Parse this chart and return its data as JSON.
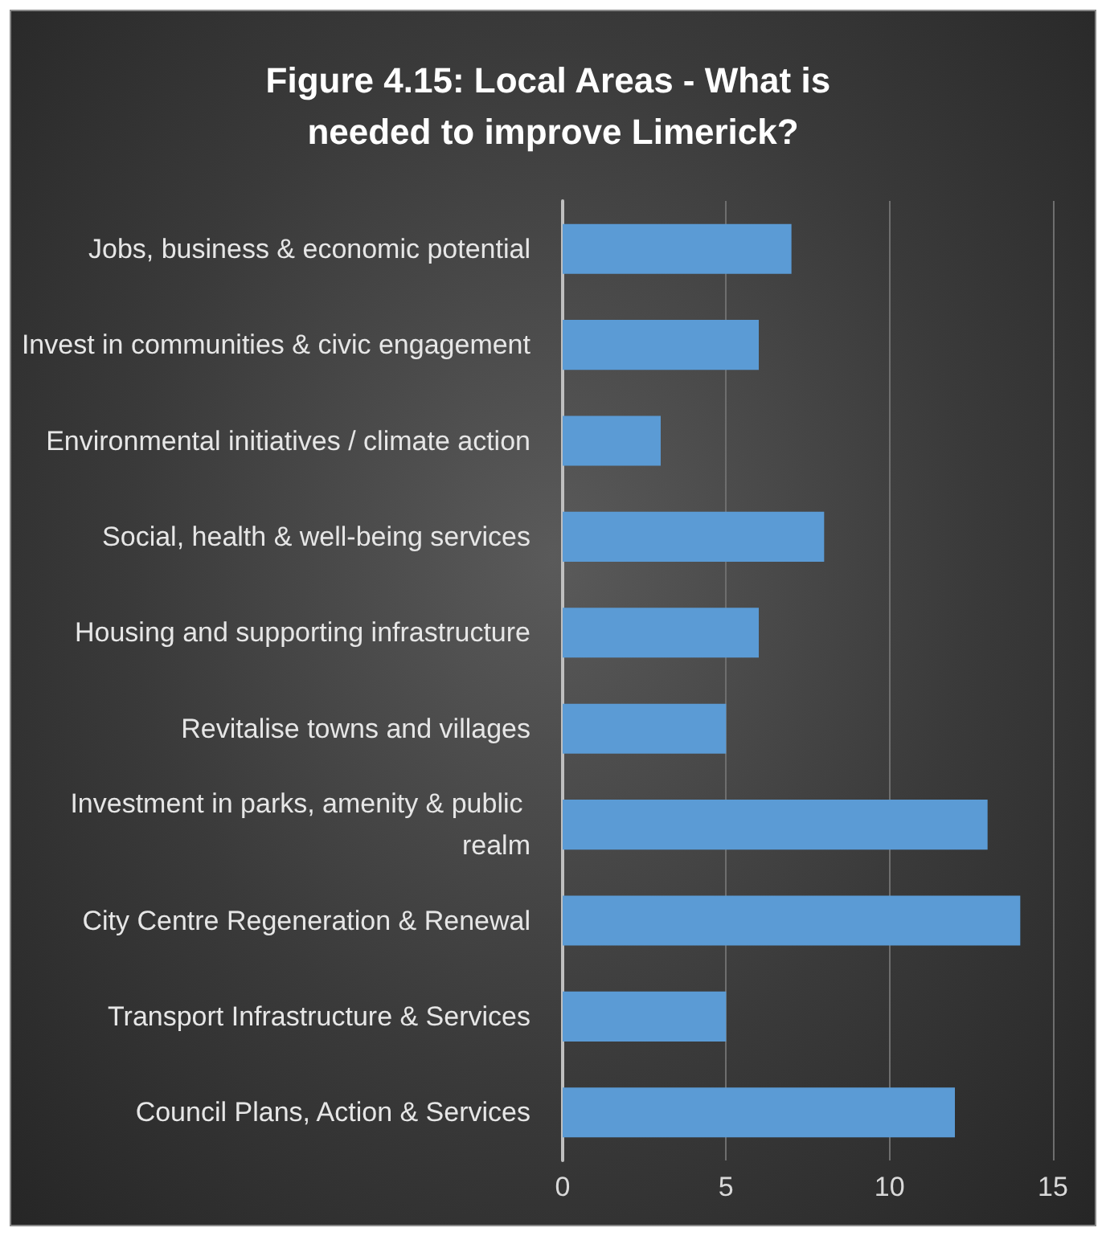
{
  "chart_data": {
    "type": "bar",
    "orientation": "horizontal",
    "title": "Figure 4.15: Local Areas - What is needed to improve Limerick?",
    "categories": [
      "Jobs, business & economic potential",
      "Invest in communities & civic engagement",
      "Environmental initiatives / climate action",
      "Social, health & well-being services",
      "Housing and supporting infrastructure",
      "Revitalise towns and villages",
      "Investment in parks, amenity & public realm",
      "City Centre Regeneration & Renewal",
      "Transport Infrastructure & Services",
      "Council Plans, Action & Services"
    ],
    "values": [
      7,
      6,
      3,
      8,
      6,
      5,
      13,
      14,
      5,
      12
    ],
    "color": "#5b9bd5",
    "xlim": [
      0,
      15
    ],
    "xticks": [
      0,
      5,
      10,
      15
    ],
    "grid": "x"
  }
}
